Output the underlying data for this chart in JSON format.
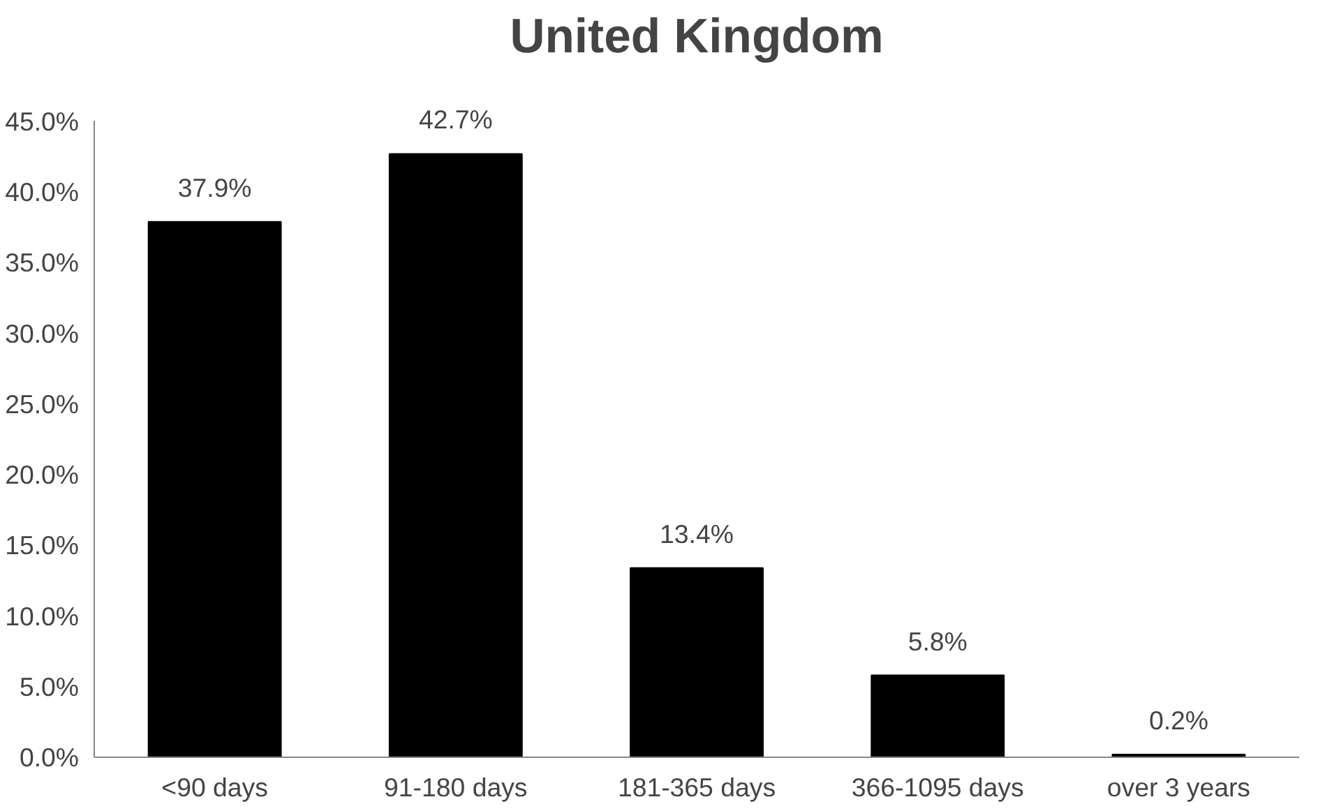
{
  "chart_data": {
    "type": "bar",
    "title": "United Kingdom",
    "categories": [
      "<90 days",
      "91-180 days",
      "181-365 days",
      "366-1095 days",
      "over 3 years"
    ],
    "values": [
      37.9,
      42.7,
      13.4,
      5.8,
      0.2
    ],
    "value_labels": [
      "37.9%",
      "42.7%",
      "13.4%",
      "5.8%",
      "0.2%"
    ],
    "color": "#000000",
    "ylim": [
      0,
      45
    ],
    "yticks": [
      {
        "value": 0,
        "label": "0.0%"
      },
      {
        "value": 5,
        "label": "5.0%"
      },
      {
        "value": 10,
        "label": "10.0%"
      },
      {
        "value": 15,
        "label": "15.0%"
      },
      {
        "value": 20,
        "label": "20.0%"
      },
      {
        "value": 25,
        "label": "25.0%"
      },
      {
        "value": 30,
        "label": "30.0%"
      },
      {
        "value": 35,
        "label": "35.0%"
      },
      {
        "value": 40,
        "label": "40.0%"
      },
      {
        "value": 45,
        "label": "45.0%"
      }
    ],
    "grid": false
  }
}
